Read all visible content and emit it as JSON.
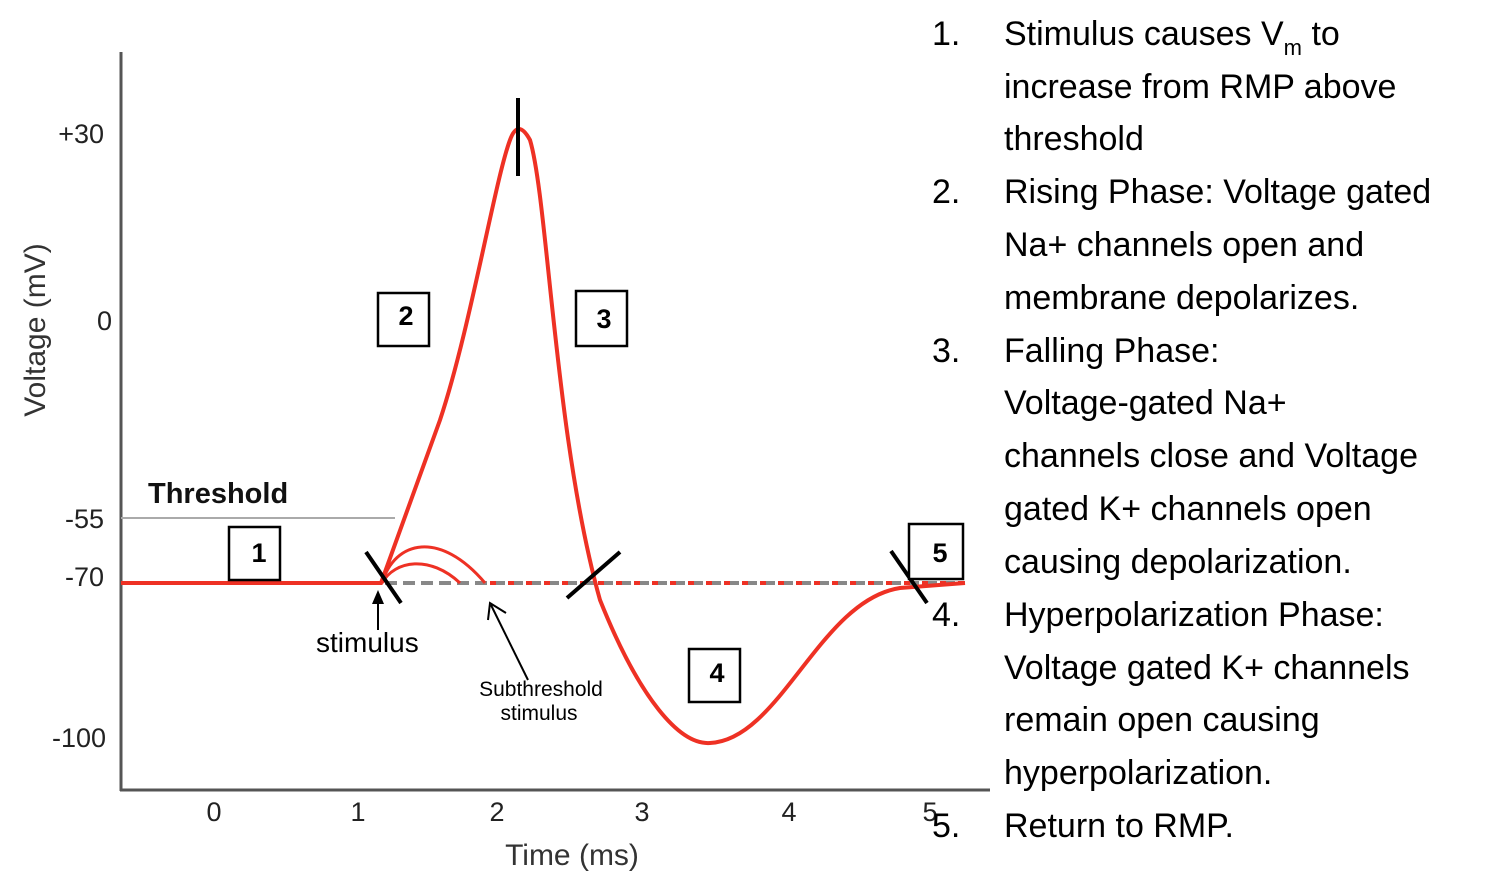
{
  "colors": {
    "trace": "#ee3124",
    "axis": "#555555",
    "rmp_dashed": "#888888",
    "threshold_line": "#aaaaaa"
  },
  "axes": {
    "y_label": "Voltage (mV)",
    "x_label": "Time (ms)",
    "y_ticks": [
      "+30",
      "0",
      "-55",
      "-70",
      "-100"
    ],
    "x_ticks": [
      "0",
      "1",
      "2",
      "3",
      "4",
      "5"
    ]
  },
  "annotations": {
    "threshold": "Threshold",
    "stimulus": "stimulus",
    "subthreshold_line1": "Subthreshold",
    "subthreshold_line2": "stimulus",
    "phase_boxes": [
      "1",
      "2",
      "3",
      "4",
      "5"
    ]
  },
  "steps": [
    {
      "num": "1.",
      "lines": [
        "Stimulus causes V",
        "increase from RMP above",
        "threshold"
      ],
      "subscript": "m",
      "after_sub": " to"
    },
    {
      "num": "2.",
      "lines": [
        "Rising Phase: Voltage gated",
        "Na+ channels open and",
        "membrane depolarizes."
      ]
    },
    {
      "num": "3.",
      "lines": [
        "Falling Phase:",
        "Voltage-gated Na+",
        "channels close and Voltage",
        "gated K+ channels open",
        "causing depolarization."
      ]
    },
    {
      "num": "4.",
      "lines": [
        "Hyperpolarization Phase:",
        "Voltage gated K+ channels",
        "remain open causing",
        "hyperpolarization."
      ]
    },
    {
      "num": "5.",
      "lines": [
        "Return to RMP."
      ]
    }
  ]
}
